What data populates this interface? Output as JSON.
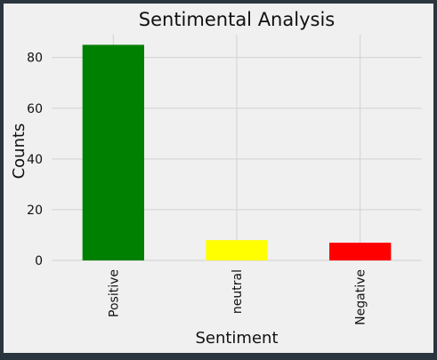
{
  "chart_data": {
    "type": "bar",
    "title": "Sentimental Analysis",
    "xlabel": "Sentiment",
    "ylabel": "Counts",
    "categories": [
      "Positive",
      "neutral",
      "Negative"
    ],
    "values": [
      85,
      8,
      7
    ],
    "colors": [
      "#008000",
      "#ffff00",
      "#ff0000"
    ],
    "ylim": [
      0,
      89
    ],
    "yticks": [
      0,
      20,
      40,
      60,
      80
    ],
    "grid": true,
    "legend": "none"
  }
}
